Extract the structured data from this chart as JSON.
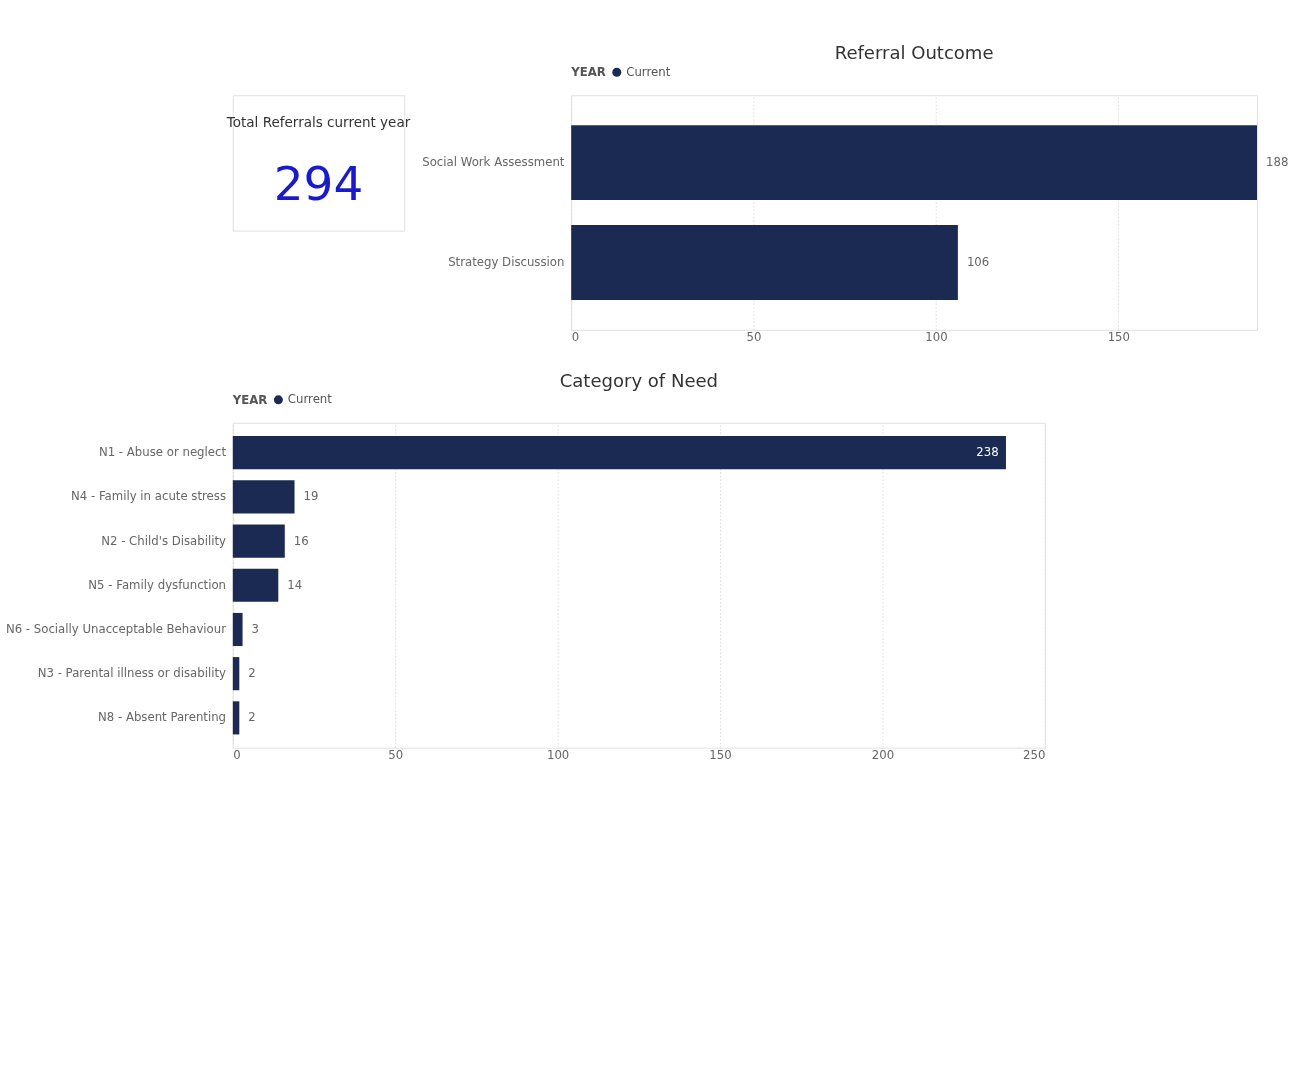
{
  "chart_data": [
    {
      "type": "other",
      "title": "Total Referrals current year",
      "annotations": [
        "294"
      ]
    },
    {
      "type": "bar",
      "orientation": "horizontal",
      "title": "Referral Outcome",
      "legend_title": "YEAR",
      "legend": "top",
      "categories": [
        "Social Work Assessment",
        "Strategy Discussion"
      ],
      "series": [
        {
          "name": "Current",
          "color": "#1b2a52",
          "values": [
            188,
            106
          ]
        }
      ],
      "xlim": [
        0,
        188
      ],
      "xticks": [
        0,
        50,
        100,
        150
      ],
      "grid": "x",
      "data_labels": true
    },
    {
      "type": "bar",
      "orientation": "horizontal",
      "title": "Category of Need",
      "legend_title": "YEAR",
      "legend": "top",
      "categories": [
        "N1 - Abuse or neglect",
        "N4 - Family in acute stress",
        "N2 - Child's Disability",
        "N5 - Family dysfunction",
        "N6 - Socially Unacceptable Behaviour",
        "N3 - Parental illness or disability",
        "N8 - Absent Parenting"
      ],
      "series": [
        {
          "name": "Current",
          "color": "#1b2a52",
          "values": [
            238,
            19,
            16,
            14,
            3,
            2,
            2
          ]
        }
      ],
      "xlim": [
        0,
        250
      ],
      "xticks": [
        0,
        50,
        100,
        150,
        200,
        250
      ],
      "grid": "x",
      "data_labels": true
    }
  ]
}
